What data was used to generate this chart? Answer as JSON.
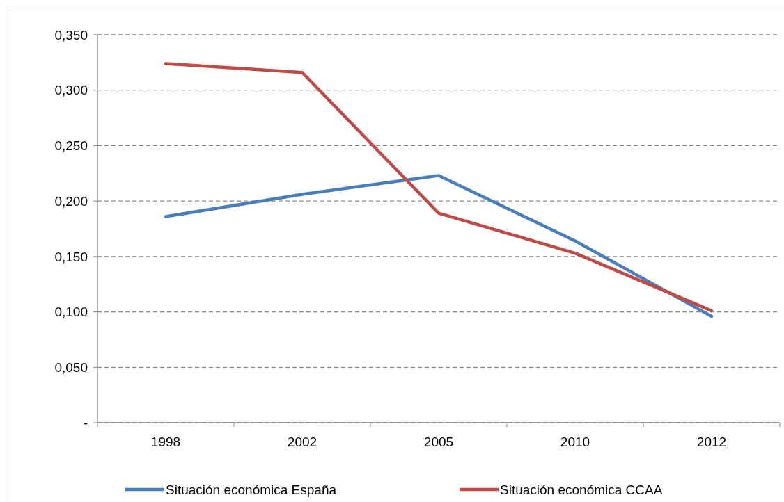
{
  "chart_data": {
    "type": "line",
    "categories": [
      "1998",
      "2002",
      "2005",
      "2010",
      "2012"
    ],
    "series": [
      {
        "name": "Situación económica España",
        "color": "#4a7ebb",
        "values": [
          0.186,
          0.206,
          0.223,
          0.164,
          0.096
        ]
      },
      {
        "name": "Situación económica CCAA",
        "color": "#be4b48",
        "values": [
          0.324,
          0.316,
          0.189,
          0.153,
          0.101
        ]
      }
    ],
    "ylim": [
      0,
      0.35
    ],
    "yticks": [
      {
        "value": 0,
        "label": "-"
      },
      {
        "value": 0.05,
        "label": "0,050"
      },
      {
        "value": 0.1,
        "label": "0,100"
      },
      {
        "value": 0.15,
        "label": "0,150"
      },
      {
        "value": 0.2,
        "label": "0,200"
      },
      {
        "value": 0.25,
        "label": "0,250"
      },
      {
        "value": 0.3,
        "label": "0,300"
      },
      {
        "value": 0.35,
        "label": "0,350"
      }
    ],
    "grid": "y",
    "legend": "bottom",
    "line_style": "solid",
    "marker": "none"
  }
}
